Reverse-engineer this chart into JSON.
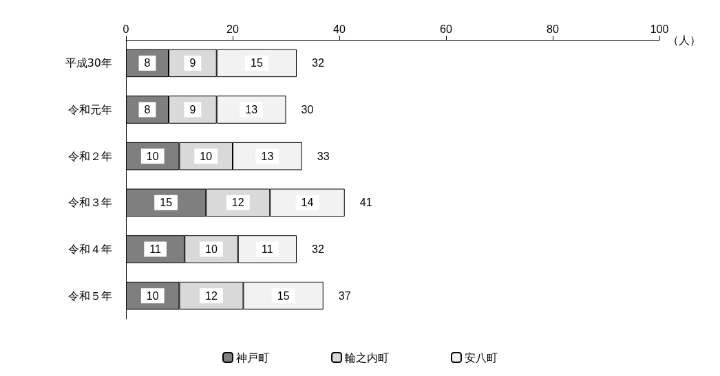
{
  "chart_data": {
    "type": "bar",
    "orientation": "horizontal",
    "stacked": true,
    "categories": [
      "平成30年",
      "令和元年",
      "令和２年",
      "令和３年",
      "令和４年",
      "令和５年"
    ],
    "series": [
      {
        "name": "神戸町",
        "color": "#7f7f7f",
        "values": [
          8,
          8,
          10,
          15,
          11,
          10
        ]
      },
      {
        "name": "輪之内町",
        "color": "#d9d9d9",
        "values": [
          9,
          9,
          10,
          12,
          10,
          12
        ]
      },
      {
        "name": "安八町",
        "color": "#f2f2f2",
        "values": [
          15,
          13,
          13,
          14,
          11,
          15
        ]
      }
    ],
    "totals": [
      "32",
      "30",
      "33",
      "41",
      "32",
      "37"
    ],
    "xlabel": "（人）",
    "xlim": [
      0,
      100
    ],
    "xticks": [
      0,
      20,
      40,
      60,
      80,
      100
    ],
    "data_labels": true,
    "grid": false,
    "legend": "bottom"
  }
}
